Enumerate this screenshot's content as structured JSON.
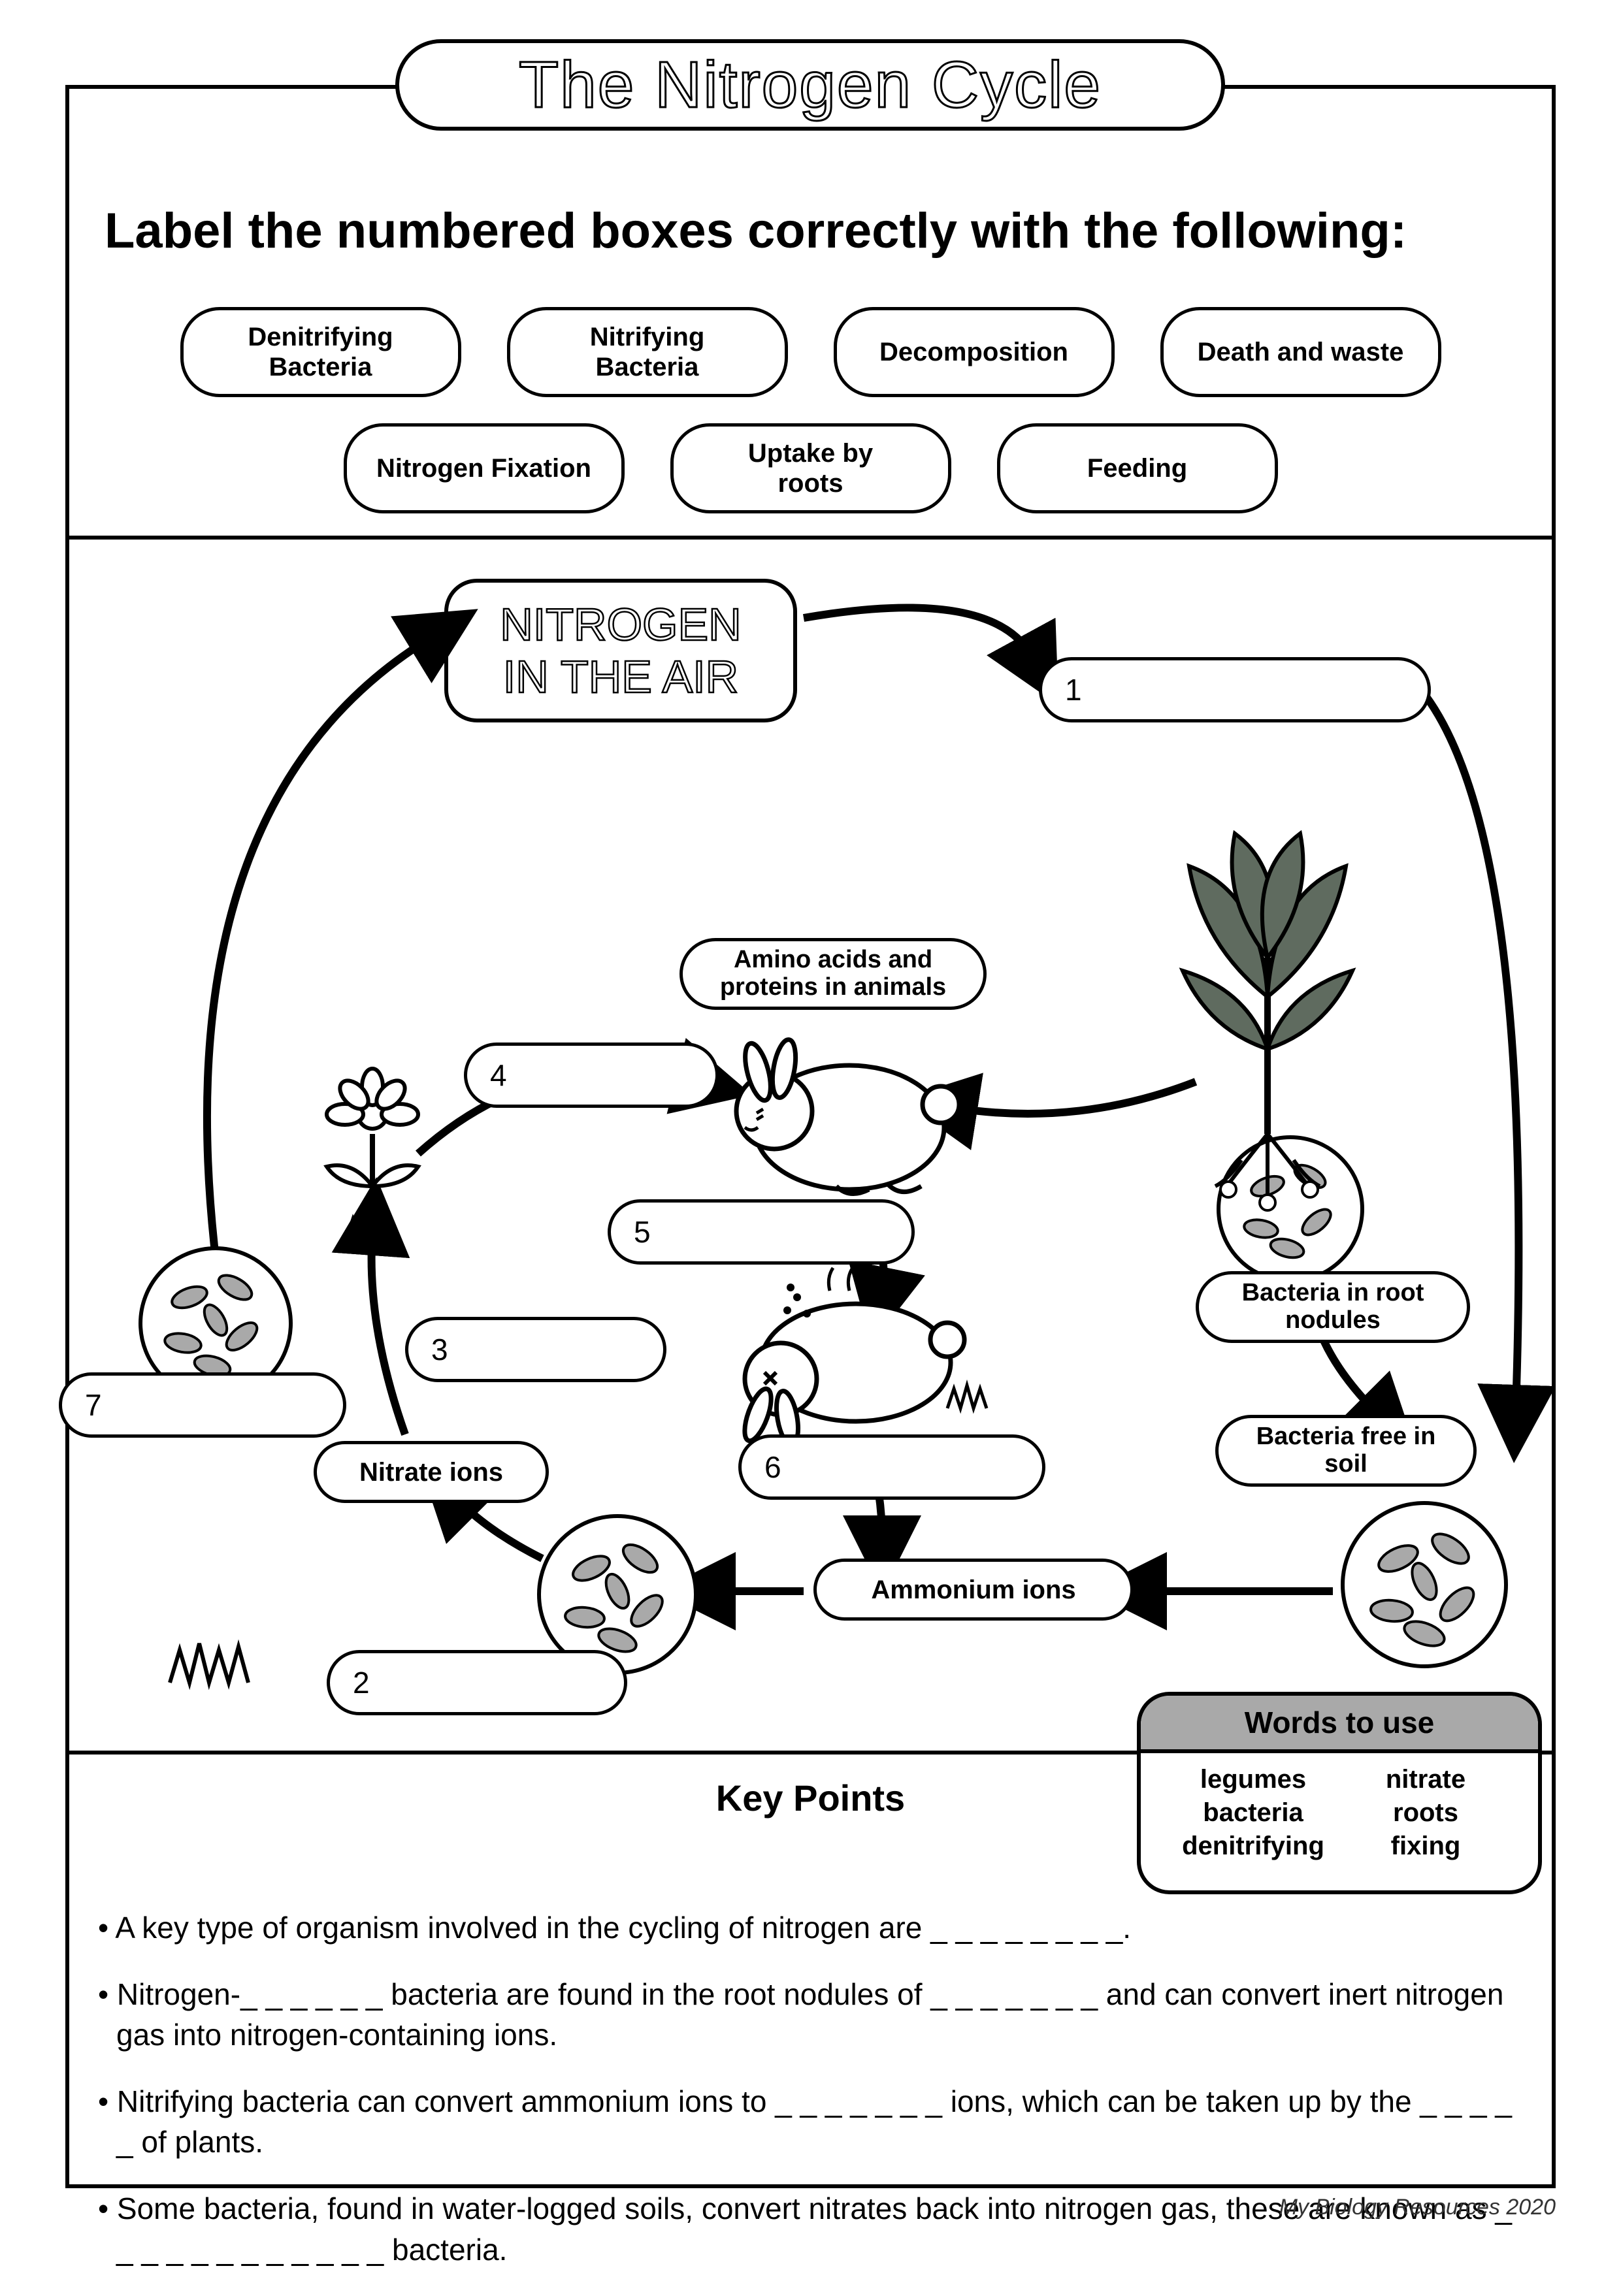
{
  "title": "The Nitrogen Cycle",
  "instruction": "Label the numbered boxes correctly with the following:",
  "word_bank": {
    "row1": [
      "Denitrifying\nBacteria",
      "Nitrifying\nBacteria",
      "Decomposition",
      "Death and waste"
    ],
    "row2": [
      "Nitrogen Fixation",
      "Uptake by\nroots",
      "Feeding"
    ]
  },
  "diagram": {
    "nitrogen_air_line1": "NITROGEN",
    "nitrogen_air_line2": "IN THE AIR",
    "labels": {
      "amino": "Amino acids and\nproteins in animals",
      "bacteria_root": "Bacteria in root\nnodules",
      "bacteria_free": "Bacteria free in\nsoil",
      "ammonium": "Ammonium ions",
      "nitrate": "Nitrate ions"
    },
    "numbers": {
      "n1": "1",
      "n2": "2",
      "n3": "3",
      "n4": "4",
      "n5": "5",
      "n6": "6",
      "n7": "7"
    },
    "colors": {
      "stroke": "#000000",
      "fill_grey": "#a9a9a9",
      "fill_leaf": "#5f6b5f",
      "background": "#ffffff"
    }
  },
  "words_to_use": {
    "header": "Words to use",
    "items": [
      "legumes",
      "nitrate",
      "bacteria",
      "roots",
      "denitrifying",
      "fixing"
    ]
  },
  "keypoints": {
    "title": "Key Points",
    "bullets": [
      "A key type of organism involved in the cycling of nitrogen are _ _ _ _ _ _ _ _.",
      "Nitrogen-_ _ _ _ _ _ bacteria are found in the root nodules of _ _ _ _ _ _ _ and can convert inert nitrogen gas into nitrogen-containing ions.",
      "Nitrifying bacteria can convert ammonium ions to _ _ _ _ _ _ _ ions, which can be taken up by the _ _ _ _ _ of plants.",
      "Some bacteria, found in water-logged soils, convert nitrates back into nitrogen gas, these are known as _ _ _ _ _ _ _ _ _ _ _ _ bacteria."
    ]
  },
  "footer": "My Biology Resources 2020"
}
